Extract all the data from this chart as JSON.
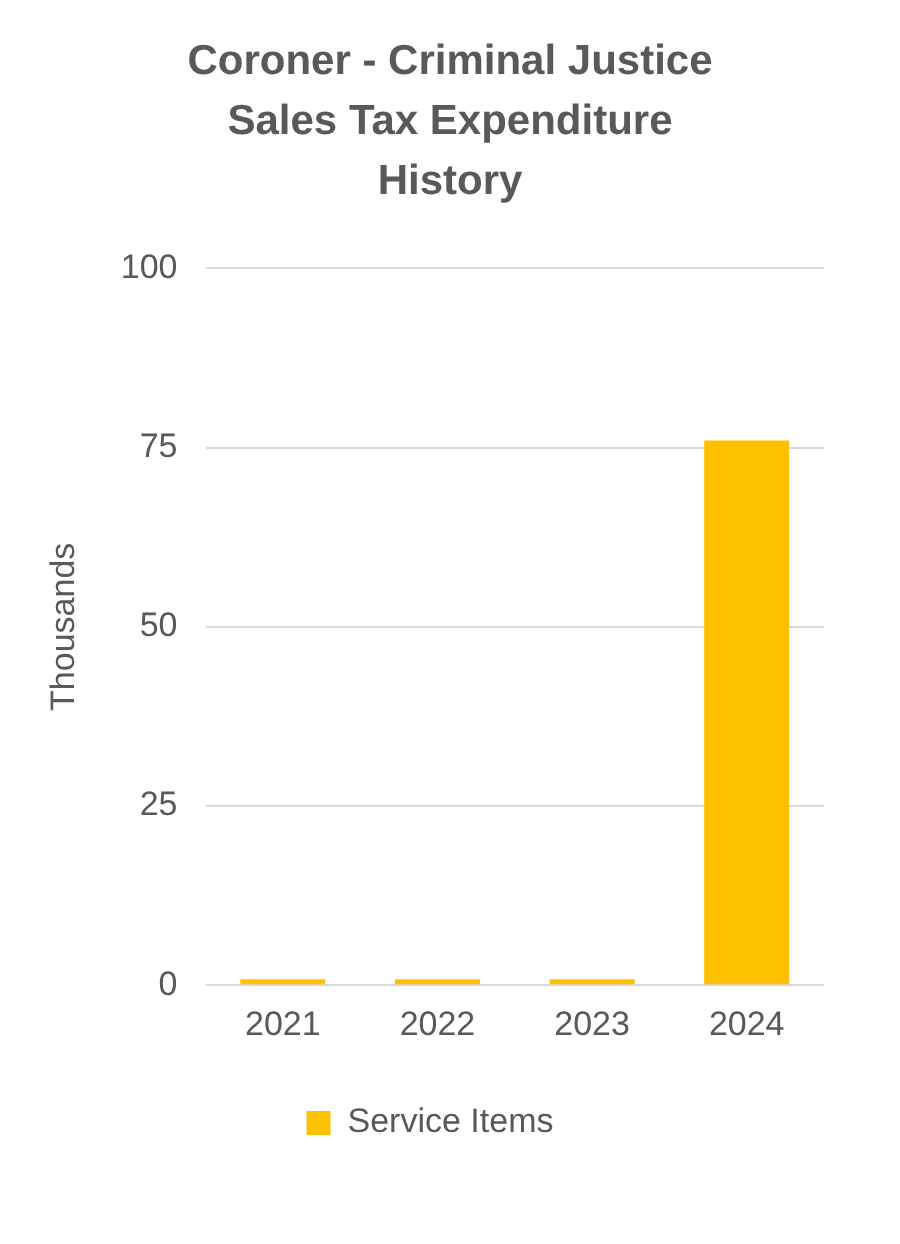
{
  "chart_data": {
    "type": "bar",
    "title": "Coroner - Criminal Justice Sales Tax Expenditure History",
    "ylabel": "Thousands",
    "categories": [
      "2021",
      "2022",
      "2023",
      "2024"
    ],
    "series": [
      {
        "name": "Service Items",
        "color": "#ffc000",
        "values": [
          0,
          0,
          0,
          76
        ]
      }
    ],
    "ylim": [
      0,
      100
    ],
    "yticks": [
      0,
      25,
      50,
      75,
      100
    ],
    "grid": "y",
    "legend": "bottom"
  }
}
